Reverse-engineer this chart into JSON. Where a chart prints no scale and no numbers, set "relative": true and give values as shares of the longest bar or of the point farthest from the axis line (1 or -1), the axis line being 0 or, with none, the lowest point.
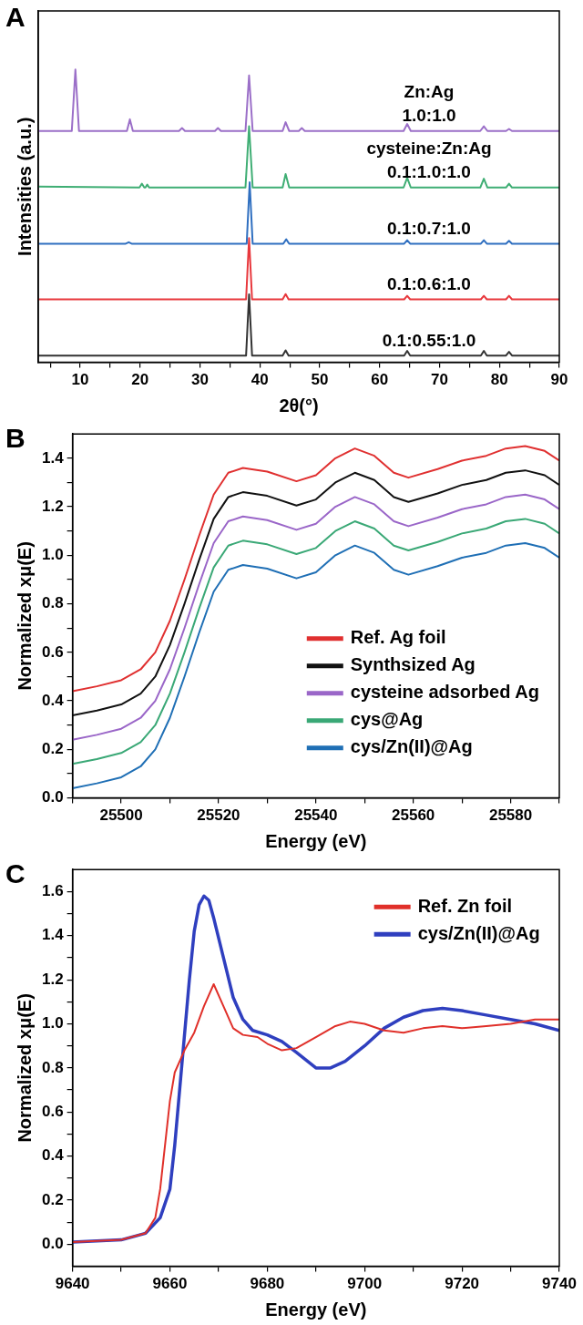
{
  "chart_data": [
    {
      "type": "line",
      "title": "A",
      "xlabel": "2θ(°)",
      "ylabel": "Intensities (a.u.)",
      "relative": true,
      "legend": false,
      "grid": false,
      "marker": "none",
      "xlim": [
        3,
        90
      ],
      "xticks": [
        {
          "value": 5,
          "label": null
        },
        10,
        {
          "value": 15,
          "label": null
        },
        20,
        {
          "value": 25,
          "label": null
        },
        30,
        {
          "value": 35,
          "label": null
        },
        40,
        {
          "value": 45,
          "label": null
        },
        50,
        {
          "value": 55,
          "label": null
        },
        60,
        {
          "value": 65,
          "label": null
        },
        70,
        {
          "value": 75,
          "label": null
        },
        80,
        {
          "value": 85,
          "label": null
        },
        90
      ],
      "annotations": [
        "Zn:Ag",
        "cysteine:Zn:Ag"
      ],
      "series": [
        {
          "name": "0.1:0.55:1.0",
          "color": "#333333",
          "x": [
            3,
            37.7,
            38.2,
            38.7,
            43.8,
            44.3,
            44.8,
            64.1,
            64.6,
            65.1,
            76.9,
            77.4,
            77.9,
            81.1,
            81.6,
            82.1,
            90
          ],
          "values": [
            0.023,
            0.023,
            0.232,
            0.023,
            0.023,
            0.041,
            0.023,
            0.023,
            0.039,
            0.023,
            0.023,
            0.039,
            0.023,
            0.023,
            0.036,
            0.023,
            0.023
          ]
        },
        {
          "name": "0.1:0.6:1.0",
          "color": "#e8383d",
          "x": [
            3,
            37.7,
            38.2,
            38.7,
            43.8,
            44.3,
            44.8,
            64.1,
            64.6,
            65.1,
            76.9,
            77.4,
            77.9,
            81.1,
            81.6,
            82.1,
            90
          ],
          "values": [
            0.215,
            0.215,
            0.424,
            0.215,
            0.215,
            0.233,
            0.215,
            0.215,
            0.227,
            0.215,
            0.215,
            0.227,
            0.215,
            0.215,
            0.227,
            0.215,
            0.215
          ]
        },
        {
          "name": "0.1:0.7:1.0",
          "color": "#2f6fc0",
          "x": [
            3,
            17.6,
            18.1,
            18.6,
            37.8,
            38.3,
            38.8,
            43.9,
            44.4,
            44.9,
            64.1,
            64.6,
            65.1,
            76.9,
            77.4,
            77.9,
            81.1,
            81.6,
            82.1,
            90
          ],
          "values": [
            0.405,
            0.405,
            0.41,
            0.405,
            0.405,
            0.615,
            0.405,
            0.405,
            0.42,
            0.405,
            0.405,
            0.417,
            0.405,
            0.405,
            0.417,
            0.405,
            0.405,
            0.415,
            0.405,
            0.405
          ]
        },
        {
          "name": "0.1:1.0:1.0",
          "color": "#3fae74",
          "x": [
            3,
            19.9,
            20.3,
            20.7,
            20.9,
            21.2,
            21.5,
            37.6,
            38.2,
            38.8,
            43.8,
            44.3,
            44.9,
            64,
            64.6,
            65.2,
            76.8,
            77.4,
            78,
            81.1,
            81.6,
            82.1,
            90
          ],
          "values": [
            0.6,
            0.597,
            0.61,
            0.597,
            0.597,
            0.607,
            0.597,
            0.597,
            0.806,
            0.597,
            0.597,
            0.643,
            0.597,
            0.597,
            0.63,
            0.597,
            0.597,
            0.627,
            0.597,
            0.597,
            0.61,
            0.597,
            0.597
          ]
        },
        {
          "name": "1.0:1.0",
          "color": "#9b6fc8",
          "x": [
            3,
            8.6,
            9.2,
            9.8,
            17.8,
            18.3,
            18.8,
            26.5,
            27,
            27.5,
            32.5,
            33,
            33.5,
            37.6,
            38.2,
            38.8,
            43.8,
            44.3,
            44.9,
            46.5,
            47,
            47.5,
            64,
            64.6,
            65.2,
            76.8,
            77.4,
            78,
            81.1,
            81.6,
            82.1,
            90
          ],
          "values": [
            0.79,
            0.79,
            1.0,
            0.79,
            0.79,
            0.83,
            0.79,
            0.79,
            0.8,
            0.79,
            0.79,
            0.8,
            0.79,
            0.79,
            0.98,
            0.79,
            0.79,
            0.82,
            0.79,
            0.79,
            0.8,
            0.79,
            0.79,
            0.814,
            0.79,
            0.79,
            0.806,
            0.79,
            0.79,
            0.797,
            0.79,
            0.79
          ]
        }
      ]
    },
    {
      "type": "line",
      "title": "B",
      "xlabel": "Energy (eV)",
      "ylabel": "Normalized xμ(E)",
      "legend": "bottom right",
      "grid": false,
      "marker": "none",
      "xlim": [
        25490,
        25590
      ],
      "ylim": [
        0,
        1.5
      ],
      "xticks": [
        {
          "value": 25490,
          "label": null
        },
        25500,
        {
          "value": 25510,
          "label": null
        },
        25520,
        {
          "value": 25530,
          "label": null
        },
        25540,
        {
          "value": 25550,
          "label": null
        },
        25560,
        {
          "value": 25570,
          "label": null
        },
        25580,
        {
          "value": 25590,
          "label": null
        }
      ],
      "yticks": [
        {
          "value": 0,
          "label": "0.0"
        },
        {
          "value": 0.1,
          "label": null
        },
        0.2,
        {
          "value": 0.3,
          "label": null
        },
        0.4,
        {
          "value": 0.5,
          "label": null
        },
        0.6,
        {
          "value": 0.7,
          "label": null
        },
        0.8,
        {
          "value": 0.9,
          "label": null
        },
        {
          "value": 1,
          "label": "1.0"
        },
        {
          "value": 1.1,
          "label": null
        },
        1.2,
        {
          "value": 1.3,
          "label": null
        },
        1.4
      ],
      "x": [
        25490,
        25495,
        25500,
        25504,
        25507,
        25510,
        25513,
        25516,
        25519,
        25522,
        25525,
        25530,
        25536,
        25540,
        25544,
        25548,
        25552,
        25556,
        25559,
        25565,
        25570,
        25575,
        25579,
        25583,
        25587,
        25590
      ],
      "series": [
        {
          "name": "Ref. Ag foil",
          "color": "#e03030",
          "values": [
            0.44,
            0.46,
            0.485,
            0.53,
            0.6,
            0.73,
            0.9,
            1.08,
            1.25,
            1.34,
            1.36,
            1.345,
            1.305,
            1.33,
            1.4,
            1.44,
            1.41,
            1.34,
            1.32,
            1.355,
            1.39,
            1.41,
            1.44,
            1.45,
            1.43,
            1.39
          ]
        },
        {
          "name": "Synthsized Ag",
          "color": "#111111",
          "values": [
            0.34,
            0.36,
            0.385,
            0.43,
            0.5,
            0.63,
            0.8,
            0.98,
            1.15,
            1.24,
            1.26,
            1.245,
            1.205,
            1.23,
            1.3,
            1.34,
            1.31,
            1.24,
            1.22,
            1.255,
            1.29,
            1.31,
            1.34,
            1.35,
            1.33,
            1.29
          ]
        },
        {
          "name": "cysteine adsorbed Ag",
          "color": "#9a66c8",
          "values": [
            0.24,
            0.26,
            0.285,
            0.33,
            0.4,
            0.53,
            0.7,
            0.88,
            1.05,
            1.14,
            1.16,
            1.145,
            1.105,
            1.13,
            1.2,
            1.24,
            1.21,
            1.14,
            1.12,
            1.155,
            1.19,
            1.21,
            1.24,
            1.25,
            1.23,
            1.19
          ]
        },
        {
          "name": "cys@Ag",
          "color": "#3aa876",
          "values": [
            0.14,
            0.16,
            0.185,
            0.23,
            0.3,
            0.43,
            0.6,
            0.78,
            0.95,
            1.04,
            1.06,
            1.045,
            1.005,
            1.03,
            1.1,
            1.14,
            1.11,
            1.04,
            1.02,
            1.055,
            1.09,
            1.11,
            1.14,
            1.15,
            1.13,
            1.09
          ]
        },
        {
          "name": "cys/Zn(II)@Ag",
          "color": "#1f6fb5",
          "values": [
            0.04,
            0.06,
            0.085,
            0.13,
            0.2,
            0.33,
            0.5,
            0.68,
            0.85,
            0.94,
            0.96,
            0.945,
            0.905,
            0.93,
            1.0,
            1.04,
            1.01,
            0.94,
            0.92,
            0.955,
            0.99,
            1.01,
            1.04,
            1.05,
            1.03,
            0.99
          ]
        }
      ]
    },
    {
      "type": "line",
      "title": "C",
      "xlabel": "Energy (eV)",
      "ylabel": "Normalized xμ(E)",
      "legend": "top right",
      "grid": false,
      "marker": "none",
      "xlim": [
        9640,
        9740
      ],
      "ylim": [
        -0.1,
        1.7
      ],
      "xticks": [
        9640,
        {
          "value": 9650,
          "label": null
        },
        9660,
        {
          "value": 9670,
          "label": null
        },
        9680,
        {
          "value": 9690,
          "label": null
        },
        9700,
        {
          "value": 9710,
          "label": null
        },
        9720,
        {
          "value": 9730,
          "label": null
        },
        9740
      ],
      "yticks": [
        {
          "value": 0,
          "label": "0.0"
        },
        {
          "value": 0.1,
          "label": null
        },
        0.2,
        {
          "value": 0.3,
          "label": null
        },
        0.4,
        {
          "value": 0.5,
          "label": null
        },
        0.6,
        {
          "value": 0.7,
          "label": null
        },
        0.8,
        {
          "value": 0.9,
          "label": null
        },
        {
          "value": 1,
          "label": "1.0"
        },
        {
          "value": 1.1,
          "label": null
        },
        1.2,
        {
          "value": 1.3,
          "label": null
        },
        1.4,
        {
          "value": 1.5,
          "label": null
        },
        1.6
      ],
      "series": [
        {
          "name": "Ref. Zn foil",
          "color": "#e0302a",
          "x": [
            9640,
            9650,
            9655,
            9657,
            9658,
            9659,
            9660,
            9661,
            9663,
            9665,
            9667,
            9669,
            9671,
            9673,
            9675,
            9678,
            9680,
            9683,
            9686,
            9690,
            9694,
            9697,
            9700,
            9704,
            9708,
            9712,
            9716,
            9720,
            9725,
            9730,
            9735,
            9740
          ],
          "values": [
            0.01,
            0.02,
            0.05,
            0.12,
            0.25,
            0.45,
            0.65,
            0.78,
            0.88,
            0.96,
            1.08,
            1.18,
            1.08,
            0.98,
            0.95,
            0.94,
            0.91,
            0.88,
            0.89,
            0.94,
            0.99,
            1.01,
            1.0,
            0.97,
            0.96,
            0.98,
            0.99,
            0.98,
            0.99,
            1.0,
            1.02,
            1.02
          ]
        },
        {
          "name": "cys/Zn(II)@Ag",
          "color": "#2f3fbf",
          "x": [
            9640,
            9650,
            9655,
            9658,
            9660,
            9661,
            9662,
            9663,
            9664,
            9665,
            9666,
            9667,
            9668,
            9669,
            9671,
            9673,
            9675,
            9677,
            9680,
            9683,
            9686,
            9690,
            9693,
            9696,
            9700,
            9704,
            9708,
            9712,
            9716,
            9720,
            9725,
            9730,
            9735,
            9740
          ],
          "values": [
            0.01,
            0.02,
            0.05,
            0.12,
            0.25,
            0.45,
            0.7,
            0.95,
            1.2,
            1.42,
            1.54,
            1.58,
            1.56,
            1.48,
            1.3,
            1.12,
            1.02,
            0.97,
            0.95,
            0.92,
            0.87,
            0.8,
            0.8,
            0.83,
            0.9,
            0.98,
            1.03,
            1.06,
            1.07,
            1.06,
            1.04,
            1.02,
            1.0,
            0.97
          ]
        }
      ]
    }
  ]
}
